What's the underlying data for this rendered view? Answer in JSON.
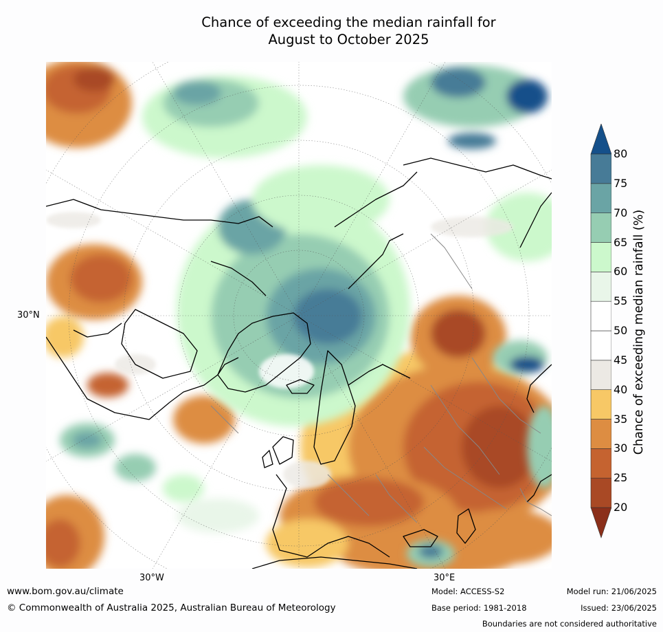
{
  "title": {
    "line1": "Chance of exceeding the median rainfall for",
    "line2": "August to October 2025"
  },
  "map": {
    "projection": "north polar stereographic",
    "lat_labels": [
      "30°N"
    ],
    "lon_labels": [
      "30°W",
      "30°E"
    ],
    "boundaries": [
      "coastlines",
      "country borders",
      "parallels",
      "meridians"
    ]
  },
  "colorbar": {
    "label": "Chance of exceeding median rainfall (%)",
    "ticks": [
      "20",
      "25",
      "30",
      "35",
      "40",
      "45",
      "50",
      "55",
      "60",
      "65",
      "70",
      "75",
      "80"
    ],
    "bins": [
      {
        "range": "<20",
        "color": "#8b2f1a"
      },
      {
        "range": "20-25",
        "color": "#a94925"
      },
      {
        "range": "25-30",
        "color": "#c56330"
      },
      {
        "range": "30-35",
        "color": "#dd8d42"
      },
      {
        "range": "35-40",
        "color": "#f7c866"
      },
      {
        "range": "40-45",
        "color": "#ece9e4"
      },
      {
        "range": "45-50",
        "color": "#ffffff"
      },
      {
        "range": "50-55",
        "color": "#ffffff"
      },
      {
        "range": "55-60",
        "color": "#e9f6e9"
      },
      {
        "range": "60-65",
        "color": "#ccf8cc"
      },
      {
        "range": "65-70",
        "color": "#96cdb2"
      },
      {
        "range": "70-75",
        "color": "#6aa4a5"
      },
      {
        "range": "75-80",
        "color": "#477b97"
      },
      {
        "range": ">80",
        "color": "#15508a"
      }
    ]
  },
  "footer": {
    "website": "www.bom.gov.au/climate",
    "copyright": "© Commonwealth of Australia 2025, Australian Bureau of Meteorology",
    "model": "Model: ACCESS-S2",
    "base_period": "Base period: 1981-2018",
    "model_run": "Model run: 21/06/2025",
    "issued": "Issued: 23/06/2025",
    "disclaimer": "Boundaries are not considered authoritative"
  }
}
